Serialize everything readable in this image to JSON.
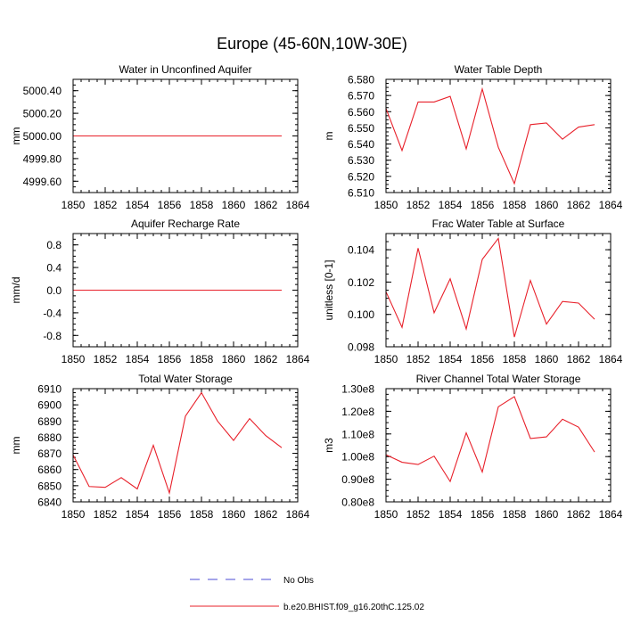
{
  "page_title": "Europe (45-60N,10W-30E)",
  "chart_data": [
    {
      "type": "line",
      "title": "Water in Unconfined Aquifer",
      "xlabel": "",
      "ylabel": "mm",
      "xlim": [
        1850,
        1864
      ],
      "ylim": [
        4999.5,
        5000.5
      ],
      "x_ticks": [
        1850,
        1852,
        1854,
        1856,
        1858,
        1860,
        1862,
        1864
      ],
      "y_ticks": [
        4999.6,
        4999.8,
        5000.0,
        5000.2,
        5000.4
      ],
      "y_tick_labels": [
        "4999.60",
        "4999.80",
        "5000.00",
        "5000.20",
        "5000.40"
      ],
      "series": [
        {
          "color": "#e8202a",
          "x": [
            1850,
            1851,
            1852,
            1853,
            1854,
            1855,
            1856,
            1857,
            1858,
            1859,
            1860,
            1861,
            1862,
            1863
          ],
          "values": [
            5000.0,
            5000.0,
            5000.0,
            5000.0,
            5000.0,
            5000.0,
            5000.0,
            5000.0,
            5000.0,
            5000.0,
            5000.0,
            5000.0,
            5000.0,
            5000.0
          ]
        }
      ]
    },
    {
      "type": "line",
      "title": "Water Table Depth",
      "xlabel": "",
      "ylabel": "m",
      "xlim": [
        1850,
        1864
      ],
      "ylim": [
        6.51,
        6.58
      ],
      "x_ticks": [
        1850,
        1852,
        1854,
        1856,
        1858,
        1860,
        1862,
        1864
      ],
      "y_ticks": [
        6.51,
        6.52,
        6.53,
        6.54,
        6.55,
        6.56,
        6.57,
        6.58
      ],
      "y_tick_labels": [
        "6.510",
        "6.520",
        "6.530",
        "6.540",
        "6.550",
        "6.560",
        "6.570",
        "6.580"
      ],
      "series": [
        {
          "color": "#e8202a",
          "x": [
            1850,
            1851,
            1852,
            1853,
            1854,
            1855,
            1856,
            1857,
            1858,
            1859,
            1860,
            1861,
            1862,
            1863
          ],
          "values": [
            6.562,
            6.536,
            6.566,
            6.566,
            6.5695,
            6.537,
            6.574,
            6.538,
            6.5155,
            6.552,
            6.553,
            6.543,
            6.5505,
            6.552
          ]
        }
      ]
    },
    {
      "type": "line",
      "title": "Aquifer Recharge Rate",
      "xlabel": "",
      "ylabel": "mm/d",
      "xlim": [
        1850,
        1864
      ],
      "ylim": [
        -1.0,
        1.0
      ],
      "x_ticks": [
        1850,
        1852,
        1854,
        1856,
        1858,
        1860,
        1862,
        1864
      ],
      "y_ticks": [
        -0.8,
        -0.4,
        0.0,
        0.4,
        0.8
      ],
      "y_tick_labels": [
        "-0.8",
        "-0.4",
        "0.0",
        "0.4",
        "0.8"
      ],
      "series": [
        {
          "color": "#e8202a",
          "x": [
            1850,
            1851,
            1852,
            1853,
            1854,
            1855,
            1856,
            1857,
            1858,
            1859,
            1860,
            1861,
            1862,
            1863
          ],
          "values": [
            0,
            0,
            0,
            0,
            0,
            0,
            0,
            0,
            0,
            0,
            0,
            0,
            0,
            0
          ]
        }
      ]
    },
    {
      "type": "line",
      "title": "Frac Water Table at Surface",
      "xlabel": "",
      "ylabel": "unitless [0-1]",
      "xlim": [
        1850,
        1864
      ],
      "ylim": [
        0.098,
        0.105
      ],
      "x_ticks": [
        1850,
        1852,
        1854,
        1856,
        1858,
        1860,
        1862,
        1864
      ],
      "y_ticks": [
        0.098,
        0.1,
        0.102,
        0.104
      ],
      "y_tick_labels": [
        "0.098",
        "0.100",
        "0.102",
        "0.104"
      ],
      "series": [
        {
          "color": "#e8202a",
          "x": [
            1850,
            1851,
            1852,
            1853,
            1854,
            1855,
            1856,
            1857,
            1858,
            1859,
            1860,
            1861,
            1862,
            1863
          ],
          "values": [
            0.1014,
            0.0992,
            0.1041,
            0.1001,
            0.1022,
            0.0991,
            0.1034,
            0.1047,
            0.0986,
            0.1021,
            0.0994,
            0.1008,
            0.1007,
            0.0997
          ]
        }
      ]
    },
    {
      "type": "line",
      "title": "Total Water Storage",
      "xlabel": "",
      "ylabel": "mm",
      "xlim": [
        1850,
        1864
      ],
      "ylim": [
        6840,
        6910
      ],
      "x_ticks": [
        1850,
        1852,
        1854,
        1856,
        1858,
        1860,
        1862,
        1864
      ],
      "y_ticks": [
        6840,
        6850,
        6860,
        6870,
        6880,
        6890,
        6900,
        6910
      ],
      "y_tick_labels": [
        "6840",
        "6850",
        "6860",
        "6870",
        "6880",
        "6890",
        "6900",
        "6910"
      ],
      "series": [
        {
          "color": "#e8202a",
          "x": [
            1850,
            1851,
            1852,
            1853,
            1854,
            1855,
            1856,
            1857,
            1858,
            1859,
            1860,
            1861,
            1862,
            1863
          ],
          "values": [
            6869,
            6849.5,
            6849,
            6855,
            6848,
            6875,
            6845.5,
            6893,
            6907.5,
            6890,
            6878,
            6891.5,
            6881,
            6873.5
          ]
        }
      ]
    },
    {
      "type": "line",
      "title": "River Channel Total Water Storage",
      "xlabel": "",
      "ylabel": "m3",
      "xlim": [
        1850,
        1864
      ],
      "ylim": [
        80000000,
        130000000
      ],
      "x_ticks": [
        1850,
        1852,
        1854,
        1856,
        1858,
        1860,
        1862,
        1864
      ],
      "y_ticks": [
        80000000,
        90000000,
        100000000,
        110000000,
        120000000,
        130000000
      ],
      "y_tick_labels": [
        "0.80e8",
        "0.90e8",
        "1.00e8",
        "1.10e8",
        "1.20e8",
        "1.30e8"
      ],
      "series": [
        {
          "color": "#e8202a",
          "x": [
            1850,
            1851,
            1852,
            1853,
            1854,
            1855,
            1856,
            1857,
            1858,
            1859,
            1860,
            1861,
            1862,
            1863
          ],
          "values": [
            100800000,
            97500000,
            96500000,
            100200000,
            89000000,
            110500000,
            93200000,
            122000000,
            126500000,
            108000000,
            108700000,
            116500000,
            113000000,
            102000000
          ]
        }
      ]
    }
  ],
  "legend": {
    "position": "bottom-center",
    "items": [
      {
        "label": "No Obs",
        "color": "#4b4bd6",
        "style": "dashed"
      },
      {
        "label": "b.e20.BHIST.f09_g16.20thC.125.02",
        "color": "#e8202a",
        "style": "solid"
      }
    ]
  }
}
